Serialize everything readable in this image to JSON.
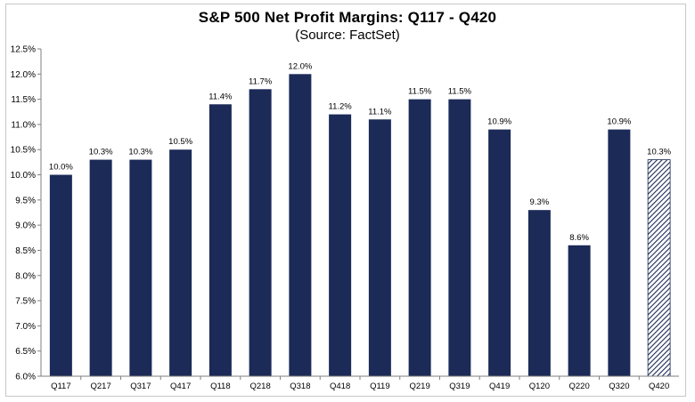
{
  "chart_data": {
    "type": "bar",
    "title": "S&P 500 Net Profit Margins: Q117 - Q420",
    "subtitle": "(Source: FactSet)",
    "xlabel": "",
    "ylabel": "",
    "categories": [
      "Q117",
      "Q217",
      "Q317",
      "Q417",
      "Q118",
      "Q218",
      "Q318",
      "Q418",
      "Q119",
      "Q219",
      "Q319",
      "Q419",
      "Q120",
      "Q220",
      "Q320",
      "Q420"
    ],
    "values": [
      10.0,
      10.3,
      10.3,
      10.5,
      11.4,
      11.7,
      12.0,
      11.2,
      11.1,
      11.5,
      11.5,
      10.9,
      9.3,
      8.6,
      10.9,
      10.3
    ],
    "data_labels": [
      "10.0%",
      "10.3%",
      "10.3%",
      "10.5%",
      "11.4%",
      "11.7%",
      "12.0%",
      "11.2%",
      "11.1%",
      "11.5%",
      "11.5%",
      "10.9%",
      "9.3%",
      "8.6%",
      "10.9%",
      "10.3%"
    ],
    "estimated": [
      false,
      false,
      false,
      false,
      false,
      false,
      false,
      false,
      false,
      false,
      false,
      false,
      false,
      false,
      false,
      true
    ],
    "ylim": [
      6.0,
      12.5
    ],
    "yticks": [
      6.0,
      6.5,
      7.0,
      7.5,
      8.0,
      8.5,
      9.0,
      9.5,
      10.0,
      10.5,
      11.0,
      11.5,
      12.0,
      12.5
    ],
    "ytick_labels": [
      "6.0%",
      "6.5%",
      "7.0%",
      "7.5%",
      "8.0%",
      "8.5%",
      "9.0%",
      "9.5%",
      "10.0%",
      "10.5%",
      "11.0%",
      "11.5%",
      "12.0%",
      "12.5%"
    ],
    "grid": false,
    "legend": "none",
    "colors": {
      "bar": "#1b2a57",
      "estimate_hatch": "#1b2a57",
      "axis": "#7f7f7f",
      "text": "#000000"
    }
  }
}
